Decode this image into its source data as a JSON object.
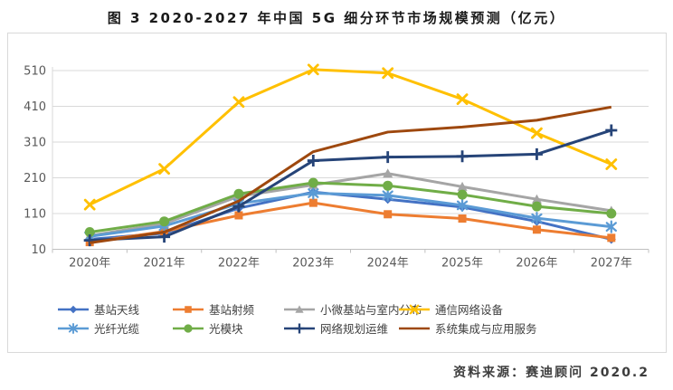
{
  "source": "资料来源：赛迪顾问  2020.2",
  "chart_data": {
    "type": "line",
    "title": "图 3 2020-2027 年中国 5G 细分环节市场规模预测（亿元）",
    "unit": "亿元",
    "categories": [
      "2020年",
      "2021年",
      "2022年",
      "2023年",
      "2024年",
      "2025年",
      "2026年",
      "2027年"
    ],
    "yticks": [
      10,
      110,
      210,
      310,
      410,
      510
    ],
    "ylim": [
      10,
      510
    ],
    "grid": true,
    "legend_position": "bottom",
    "axis_color": "#bfbfbf",
    "grid_color": "#d9d9d9",
    "label_color": "#595959",
    "series": [
      {
        "name": "基站天线",
        "color": "#4472C4",
        "marker": "diamond",
        "values": [
          38,
          55,
          125,
          170,
          150,
          128,
          88,
          38
        ]
      },
      {
        "name": "基站射频",
        "color": "#ED7D31",
        "marker": "square",
        "values": [
          30,
          60,
          105,
          140,
          108,
          96,
          65,
          42
        ]
      },
      {
        "name": "小微基站与室内分布",
        "color": "#A5A5A5",
        "marker": "triangle",
        "values": [
          48,
          82,
          158,
          190,
          222,
          185,
          150,
          118
        ]
      },
      {
        "name": "通信网络设备",
        "color": "#FFC000",
        "marker": "x",
        "values": [
          135,
          235,
          422,
          513,
          503,
          430,
          335,
          248
        ]
      },
      {
        "name": "光纤光缆",
        "color": "#5B9BD5",
        "marker": "asterisk",
        "values": [
          46,
          75,
          138,
          167,
          161,
          133,
          97,
          73
        ]
      },
      {
        "name": "光模块",
        "color": "#70AD47",
        "marker": "circle",
        "values": [
          58,
          88,
          165,
          196,
          188,
          163,
          130,
          110
        ]
      },
      {
        "name": "网络规划运维",
        "color": "#264478",
        "marker": "plus",
        "values": [
          35,
          45,
          130,
          258,
          268,
          270,
          276,
          343
        ]
      },
      {
        "name": "系统集成与应用服务",
        "color": "#9E480E",
        "marker": "none",
        "values": [
          28,
          58,
          145,
          283,
          338,
          352,
          371,
          408
        ]
      }
    ]
  }
}
